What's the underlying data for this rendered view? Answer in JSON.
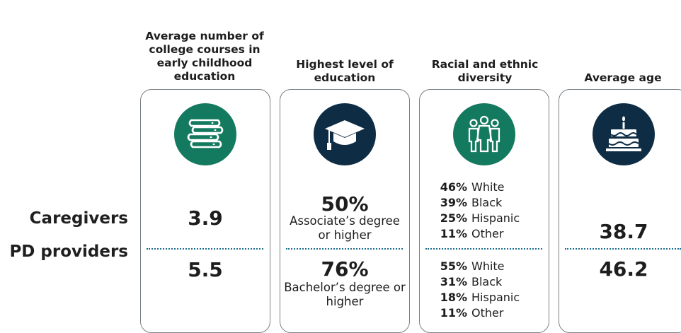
{
  "rows": {
    "caregivers": "Caregivers",
    "pd_providers": "PD providers"
  },
  "columns": [
    {
      "title": "Average number of college courses in early childhood education",
      "icon": "books-icon",
      "caregivers": "3.9",
      "pd_providers": "5.5"
    },
    {
      "title": "Highest level of education",
      "icon": "graduation-cap-icon",
      "caregivers": {
        "value": "50%",
        "label": "Associate’s degree or higher"
      },
      "pd_providers": {
        "value": "76%",
        "label": "Bachelor’s degree or higher"
      }
    },
    {
      "title": "Racial and ethnic diversity",
      "icon": "people-group-icon",
      "caregivers": [
        {
          "pct": "46%",
          "group": "White"
        },
        {
          "pct": "39%",
          "group": "Black"
        },
        {
          "pct": "25%",
          "group": "Hispanic"
        },
        {
          "pct": "11%",
          "group": "Other"
        }
      ],
      "pd_providers": [
        {
          "pct": "55%",
          "group": "White"
        },
        {
          "pct": "31%",
          "group": "Black"
        },
        {
          "pct": "18%",
          "group": "Hispanic"
        },
        {
          "pct": "11%",
          "group": "Other"
        }
      ]
    },
    {
      "title": "Average age",
      "icon": "birthday-cake-icon",
      "caregivers": "38.7",
      "pd_providers": "46.2"
    }
  ],
  "colors": {
    "green": "#147a5f",
    "navy": "#0e2d45",
    "divider": "#1d6f8c"
  }
}
